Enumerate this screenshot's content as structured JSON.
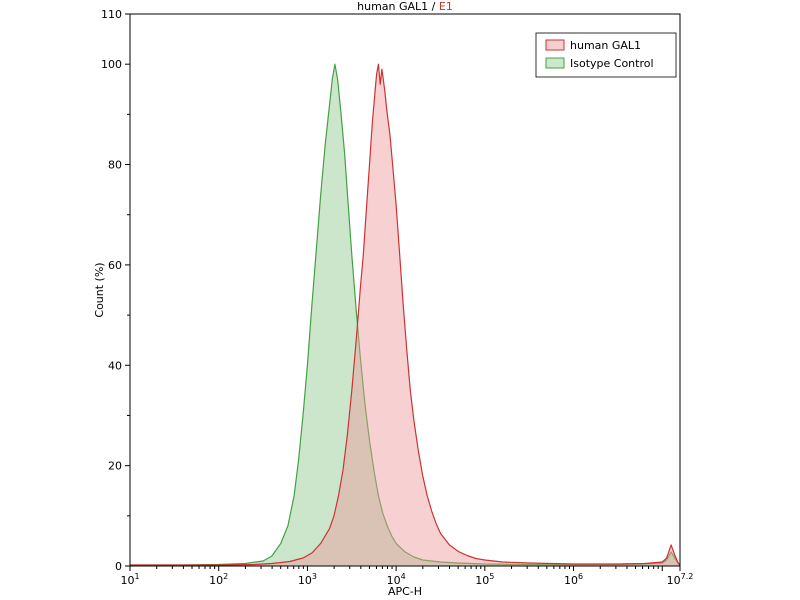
{
  "page": {
    "background": "#ffffff"
  },
  "chart_data": {
    "type": "area",
    "chart_kind": "flow-cytometry-histogram",
    "title": {
      "text_black": "human GAL1 / ",
      "text_red": "E1",
      "red_color": "#cc3322"
    },
    "xlabel": "APC-H",
    "ylabel": "Count  (%)",
    "x_scale": "log10",
    "x_log_range": [
      1,
      7.2
    ],
    "x_tick_base": "10",
    "xticks_exp": [
      "1",
      "2",
      "3",
      "4",
      "5",
      "6",
      "7.2"
    ],
    "ylim": [
      0,
      110
    ],
    "yticks_major": [
      0,
      20,
      40,
      60,
      80,
      100,
      110
    ],
    "yticks_minor": [
      10,
      30,
      50,
      70,
      90
    ],
    "axis_color": "#000000",
    "legend": {
      "position": "top-right",
      "entries": [
        {
          "label": "human GAL1",
          "stroke": "#cc3333",
          "fill": "#f7cfcf"
        },
        {
          "label": "Isotype Control",
          "stroke": "#44a044",
          "fill": "#cde7cd"
        }
      ]
    },
    "series": [
      {
        "name": "human GAL1",
        "stroke": "#cc3333",
        "fill": "rgba(238, 152, 152, 0.45)",
        "points": [
          [
            1.0,
            0.2
          ],
          [
            2.0,
            0.2
          ],
          [
            2.4,
            0.3
          ],
          [
            2.6,
            0.5
          ],
          [
            2.8,
            0.9
          ],
          [
            2.95,
            1.6
          ],
          [
            3.05,
            2.6
          ],
          [
            3.15,
            4.5
          ],
          [
            3.25,
            7.5
          ],
          [
            3.3,
            10
          ],
          [
            3.35,
            14
          ],
          [
            3.4,
            19
          ],
          [
            3.45,
            26
          ],
          [
            3.5,
            35
          ],
          [
            3.55,
            45
          ],
          [
            3.6,
            56
          ],
          [
            3.63,
            62
          ],
          [
            3.66,
            70
          ],
          [
            3.7,
            80
          ],
          [
            3.73,
            88
          ],
          [
            3.76,
            94
          ],
          [
            3.78,
            98
          ],
          [
            3.8,
            100
          ],
          [
            3.82,
            96
          ],
          [
            3.84,
            99
          ],
          [
            3.87,
            95
          ],
          [
            3.9,
            90
          ],
          [
            3.93,
            86
          ],
          [
            3.96,
            80
          ],
          [
            4.0,
            72
          ],
          [
            4.04,
            62
          ],
          [
            4.08,
            52
          ],
          [
            4.12,
            43
          ],
          [
            4.16,
            35
          ],
          [
            4.2,
            29
          ],
          [
            4.25,
            23
          ],
          [
            4.3,
            18
          ],
          [
            4.35,
            14
          ],
          [
            4.4,
            11
          ],
          [
            4.45,
            8.5
          ],
          [
            4.5,
            6.5
          ],
          [
            4.6,
            4.2
          ],
          [
            4.7,
            2.9
          ],
          [
            4.8,
            2.1
          ],
          [
            4.9,
            1.5
          ],
          [
            5.0,
            1.2
          ],
          [
            5.2,
            0.8
          ],
          [
            5.5,
            0.6
          ],
          [
            6.0,
            0.4
          ],
          [
            6.5,
            0.4
          ],
          [
            6.8,
            0.5
          ],
          [
            7.0,
            0.8
          ],
          [
            7.05,
            1.6
          ],
          [
            7.1,
            4.2
          ],
          [
            7.14,
            2.2
          ],
          [
            7.18,
            0.6
          ],
          [
            7.2,
            0.2
          ]
        ]
      },
      {
        "name": "Isotype Control",
        "stroke": "#44a044",
        "fill": "rgba(152, 206, 152, 0.5)",
        "points": [
          [
            1.0,
            0.2
          ],
          [
            1.6,
            0.2
          ],
          [
            2.0,
            0.3
          ],
          [
            2.3,
            0.5
          ],
          [
            2.5,
            1
          ],
          [
            2.6,
            2
          ],
          [
            2.7,
            4.5
          ],
          [
            2.78,
            8
          ],
          [
            2.85,
            14
          ],
          [
            2.9,
            21
          ],
          [
            2.95,
            30
          ],
          [
            3.0,
            40
          ],
          [
            3.05,
            52
          ],
          [
            3.1,
            63
          ],
          [
            3.15,
            74
          ],
          [
            3.2,
            84
          ],
          [
            3.25,
            92
          ],
          [
            3.28,
            97
          ],
          [
            3.31,
            100
          ],
          [
            3.34,
            97
          ],
          [
            3.38,
            90
          ],
          [
            3.42,
            82
          ],
          [
            3.46,
            72
          ],
          [
            3.5,
            62
          ],
          [
            3.55,
            51
          ],
          [
            3.6,
            41
          ],
          [
            3.65,
            32
          ],
          [
            3.7,
            25
          ],
          [
            3.75,
            19
          ],
          [
            3.8,
            14
          ],
          [
            3.85,
            10.5
          ],
          [
            3.9,
            8
          ],
          [
            3.95,
            6
          ],
          [
            4.0,
            4.5
          ],
          [
            4.1,
            2.8
          ],
          [
            4.2,
            1.8
          ],
          [
            4.3,
            1.2
          ],
          [
            4.5,
            0.8
          ],
          [
            4.7,
            0.6
          ],
          [
            5.0,
            0.4
          ],
          [
            5.5,
            0.3
          ],
          [
            6.0,
            0.3
          ],
          [
            6.5,
            0.3
          ],
          [
            6.8,
            0.4
          ],
          [
            7.0,
            0.6
          ],
          [
            7.05,
            1.2
          ],
          [
            7.1,
            2.8
          ],
          [
            7.14,
            1.6
          ],
          [
            7.18,
            0.5
          ],
          [
            7.2,
            0.2
          ]
        ]
      }
    ]
  }
}
